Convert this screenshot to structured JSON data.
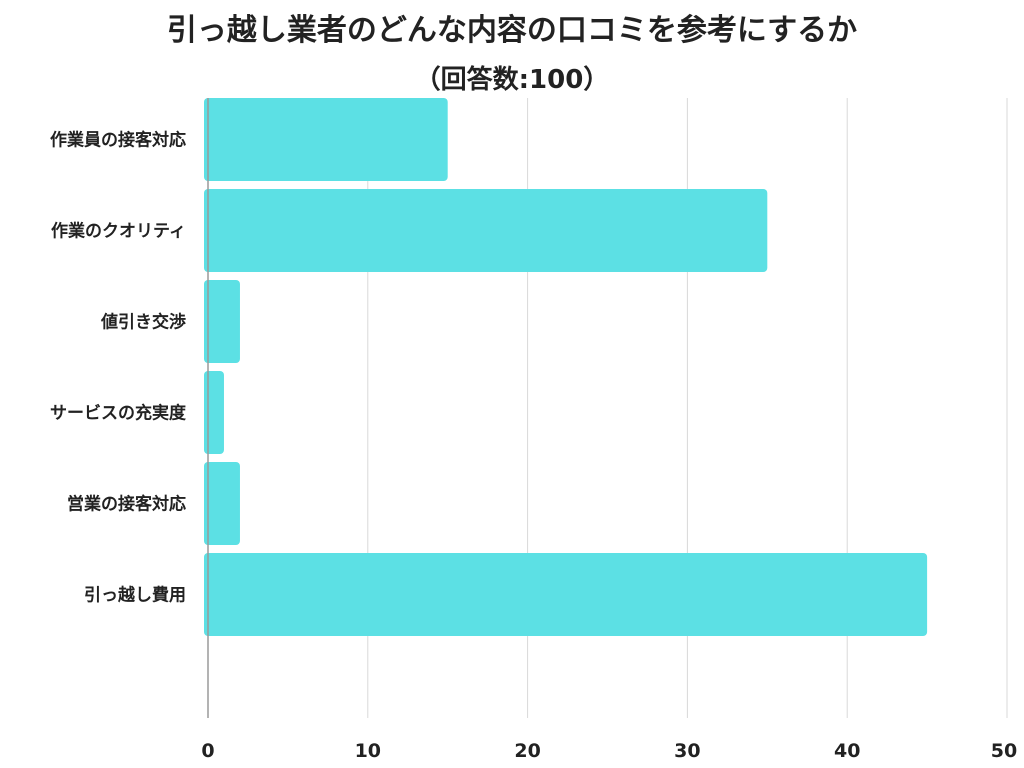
{
  "chart_data": {
    "type": "bar",
    "orientation": "horizontal",
    "title": "引っ越し業者のどんな内容の口コミを参考にするか",
    "subtitle": "（回答数:100）",
    "categories": [
      "作業員の接客対応",
      "作業のクオリティ",
      "値引き交渉",
      "サービスの充実度",
      "営業の接客対応",
      "引っ越し費用"
    ],
    "values": [
      15,
      35,
      2,
      1,
      2,
      45
    ],
    "xlim": [
      0,
      50
    ],
    "xticks": [
      "0",
      "10",
      "20",
      "30",
      "40",
      "50"
    ],
    "grid": true,
    "bar_color": "#5ce0e4",
    "grid_color": "#d9d9d9"
  }
}
